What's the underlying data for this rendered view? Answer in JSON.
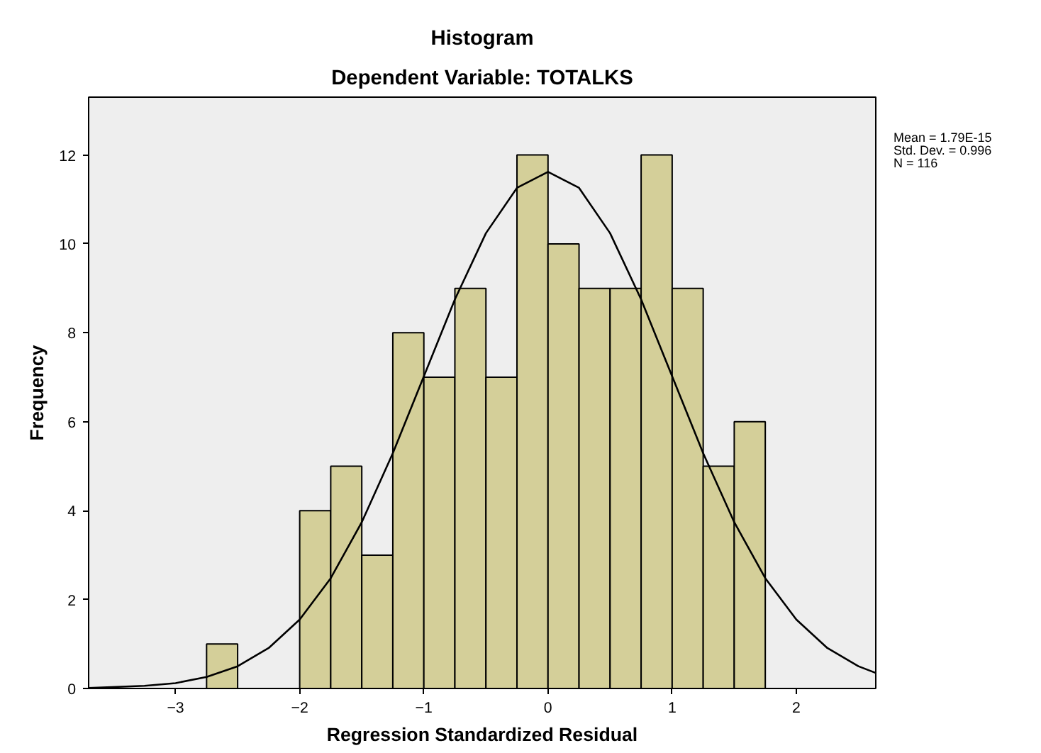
{
  "chart_data": {
    "type": "histogram",
    "title": "Histogram",
    "subtitle": "Dependent Variable: TOTALKS",
    "xlabel": "Regression Standardized Residual",
    "ylabel": "Frequency",
    "bins": [
      -2.75,
      -2.5,
      -2.25,
      -2.0,
      -1.75,
      -1.5,
      -1.25,
      -1.0,
      -0.75,
      -0.5,
      -0.25,
      0.0,
      0.25,
      0.5,
      0.75,
      1.0,
      1.25,
      1.5,
      1.75
    ],
    "series": [
      {
        "color": "#d4cf99",
        "values": [
          1,
          0,
          0,
          4,
          5,
          3,
          8,
          7,
          9,
          7,
          12,
          10,
          9,
          9,
          12,
          9,
          5,
          6
        ]
      },
      {
        "type": "line",
        "color": "#000000",
        "x": [
          -3.7,
          -3.25,
          -3.0,
          -2.75,
          -2.5,
          -2.25,
          -2.0,
          -1.75,
          -1.5,
          -1.25,
          -1.0,
          -0.75,
          -0.5,
          -0.25,
          0.0,
          0.25,
          0.5,
          0.75,
          1.0,
          1.25,
          1.5,
          1.75,
          2.0,
          2.25,
          2.5,
          2.64
        ],
        "values": [
          0.01,
          0.06,
          0.12,
          0.26,
          0.5,
          0.91,
          1.55,
          2.48,
          3.74,
          5.29,
          7.02,
          8.75,
          10.24,
          11.26,
          11.62,
          11.26,
          10.24,
          8.75,
          7.02,
          5.29,
          3.74,
          2.48,
          1.55,
          0.91,
          0.5,
          0.35
        ]
      }
    ],
    "xlim": [
      -3.7,
      2.64
    ],
    "xticks": [
      -3,
      -2,
      -1,
      0,
      1,
      2
    ],
    "ylim": [
      0,
      13.3
    ],
    "yticks": [
      0,
      2,
      4,
      6,
      8,
      10,
      12
    ],
    "annotations": [
      "Mean = 1.79E-15",
      "Std. Dev. = 0.996",
      "N = 116"
    ],
    "grid": false
  }
}
